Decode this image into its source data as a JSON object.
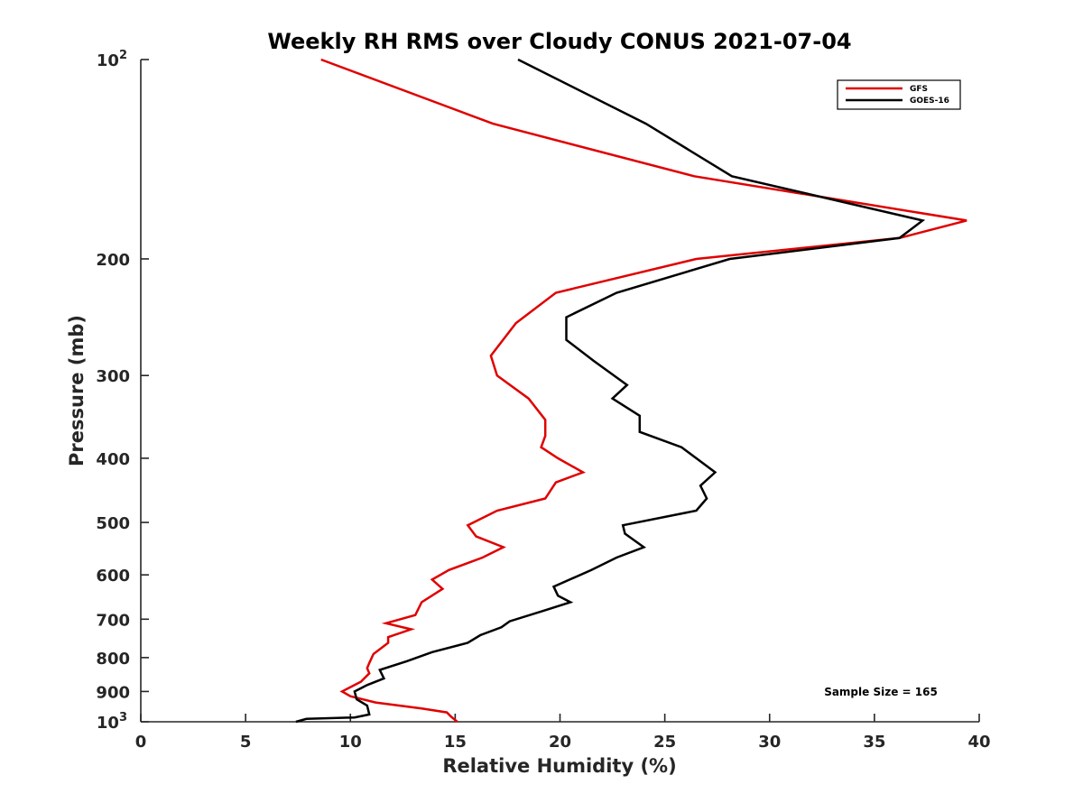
{
  "chart_data": {
    "type": "line",
    "title": "Weekly RH RMS over Cloudy CONUS 2021-07-04",
    "xlabel": "Relative Humidity (%)",
    "ylabel": "Pressure (mb)",
    "xlim": [
      0,
      40
    ],
    "ylim": [
      100,
      1000
    ],
    "yscale": "log",
    "yreverse": true,
    "x_ticks": [
      "0",
      "5",
      "10",
      "15",
      "20",
      "25",
      "30",
      "35",
      "40"
    ],
    "y_ticks": [
      {
        "value": 100,
        "label": "10",
        "sup": "2"
      },
      {
        "value": 200,
        "label": "200",
        "sup": ""
      },
      {
        "value": 300,
        "label": "300",
        "sup": ""
      },
      {
        "value": 400,
        "label": "400",
        "sup": ""
      },
      {
        "value": 500,
        "label": "500",
        "sup": ""
      },
      {
        "value": 600,
        "label": "600",
        "sup": ""
      },
      {
        "value": 700,
        "label": "700",
        "sup": ""
      },
      {
        "value": 800,
        "label": "800",
        "sup": ""
      },
      {
        "value": 900,
        "label": "900",
        "sup": ""
      },
      {
        "value": 1000,
        "label": "10",
        "sup": "3"
      }
    ],
    "grid": false,
    "legend_position": "top-right",
    "annotation": "Sample Size = 165",
    "series": [
      {
        "name": "GFS",
        "color": "#e00000",
        "points": [
          [
            8.6,
            100
          ],
          [
            16.8,
            125
          ],
          [
            26.4,
            150
          ],
          [
            39.4,
            175
          ],
          [
            36.2,
            186
          ],
          [
            26.5,
            200
          ],
          [
            19.8,
            225
          ],
          [
            17.9,
            250
          ],
          [
            16.7,
            280
          ],
          [
            17.0,
            300
          ],
          [
            18.5,
            325
          ],
          [
            19.3,
            350
          ],
          [
            19.3,
            370
          ],
          [
            19.1,
            385
          ],
          [
            19.9,
            400
          ],
          [
            21.1,
            420
          ],
          [
            19.8,
            435
          ],
          [
            19.3,
            460
          ],
          [
            17.0,
            480
          ],
          [
            15.6,
            505
          ],
          [
            16.0,
            525
          ],
          [
            17.3,
            545
          ],
          [
            16.3,
            565
          ],
          [
            14.7,
            590
          ],
          [
            13.9,
            610
          ],
          [
            14.4,
            630
          ],
          [
            13.4,
            660
          ],
          [
            13.1,
            690
          ],
          [
            11.7,
            710
          ],
          [
            12.9,
            725
          ],
          [
            11.8,
            745
          ],
          [
            11.8,
            760
          ],
          [
            11.1,
            790
          ],
          [
            10.9,
            815
          ],
          [
            10.8,
            830
          ],
          [
            10.9,
            845
          ],
          [
            10.5,
            870
          ],
          [
            9.6,
            900
          ],
          [
            10.0,
            915
          ],
          [
            11.2,
            935
          ],
          [
            13.4,
            955
          ],
          [
            14.6,
            968
          ],
          [
            14.8,
            982
          ],
          [
            15.1,
            1000
          ]
        ]
      },
      {
        "name": "GOES-16",
        "color": "#000000",
        "points": [
          [
            18.0,
            100
          ],
          [
            24.1,
            125
          ],
          [
            28.2,
            150
          ],
          [
            37.3,
            175
          ],
          [
            36.2,
            186
          ],
          [
            28.1,
            200
          ],
          [
            22.7,
            225
          ],
          [
            20.3,
            245
          ],
          [
            20.3,
            265
          ],
          [
            21.6,
            285
          ],
          [
            23.2,
            310
          ],
          [
            22.5,
            325
          ],
          [
            23.8,
            345
          ],
          [
            23.8,
            365
          ],
          [
            25.8,
            385
          ],
          [
            27.4,
            420
          ],
          [
            26.7,
            440
          ],
          [
            27.0,
            460
          ],
          [
            26.5,
            480
          ],
          [
            23.0,
            505
          ],
          [
            23.1,
            520
          ],
          [
            24.0,
            545
          ],
          [
            22.7,
            565
          ],
          [
            21.5,
            590
          ],
          [
            19.7,
            625
          ],
          [
            19.9,
            645
          ],
          [
            20.5,
            660
          ],
          [
            19.2,
            680
          ],
          [
            17.6,
            705
          ],
          [
            17.2,
            720
          ],
          [
            16.2,
            740
          ],
          [
            15.6,
            760
          ],
          [
            13.9,
            785
          ],
          [
            12.7,
            810
          ],
          [
            11.4,
            835
          ],
          [
            11.6,
            860
          ],
          [
            10.8,
            880
          ],
          [
            10.2,
            900
          ],
          [
            10.3,
            925
          ],
          [
            10.8,
            945
          ],
          [
            10.9,
            975
          ],
          [
            10.2,
            985
          ],
          [
            7.9,
            990
          ],
          [
            7.4,
            1000
          ]
        ]
      }
    ]
  }
}
